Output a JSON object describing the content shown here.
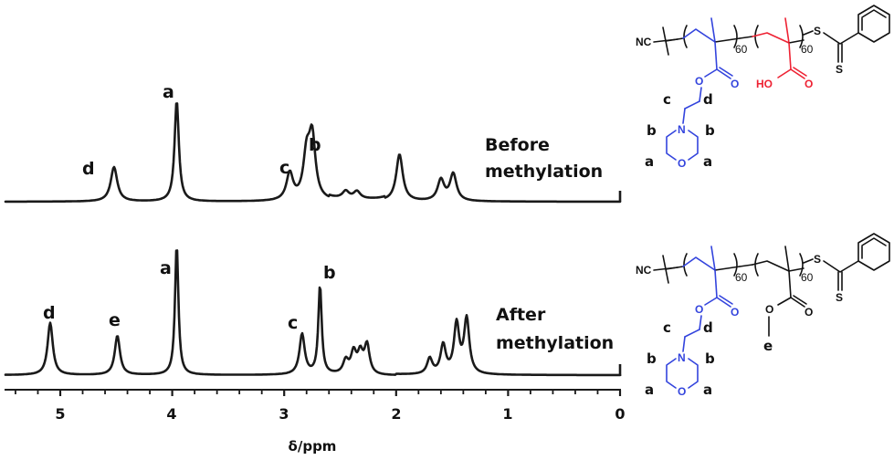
{
  "chart_data": {
    "type": "line",
    "title": "",
    "xlabel": "δ/ppm",
    "ylabel": "",
    "xlim": [
      5.47,
      0
    ],
    "x_reversed": true,
    "x_ticks": [
      5,
      4,
      3,
      2,
      1,
      0
    ],
    "x_tick_labels": [
      "5",
      "4",
      "3",
      "2",
      "1",
      "0"
    ],
    "minor_tick_step": 0.2,
    "grid": false,
    "legend": null,
    "series": [
      {
        "name": "Before methylation",
        "peaks": [
          {
            "ppm": 4.52,
            "rel_height": 0.28,
            "label": "d"
          },
          {
            "ppm": 3.96,
            "rel_height": 0.82,
            "label": "a"
          },
          {
            "ppm": 2.95,
            "rel_height": 0.22,
            "label": "c"
          },
          {
            "ppm": 2.8,
            "rel_height": 0.34,
            "label": ""
          },
          {
            "ppm": 2.75,
            "rel_height": 0.5,
            "label": "b"
          },
          {
            "ppm": 2.45,
            "rel_height": 0.06,
            "label": ""
          },
          {
            "ppm": 2.35,
            "rel_height": 0.06,
            "label": ""
          },
          {
            "ppm": 1.97,
            "rel_height": 0.38,
            "label": ""
          },
          {
            "ppm": 1.6,
            "rel_height": 0.17,
            "label": ""
          },
          {
            "ppm": 1.49,
            "rel_height": 0.22,
            "label": ""
          }
        ]
      },
      {
        "name": "After methylation",
        "peaks": [
          {
            "ppm": 5.09,
            "rel_height": 0.4,
            "label": "d"
          },
          {
            "ppm": 4.49,
            "rel_height": 0.3,
            "label": "e"
          },
          {
            "ppm": 3.96,
            "rel_height": 1.0,
            "label": "a"
          },
          {
            "ppm": 2.84,
            "rel_height": 0.31,
            "label": "c"
          },
          {
            "ppm": 2.68,
            "rel_height": 0.68,
            "label": "b"
          },
          {
            "ppm": 2.45,
            "rel_height": 0.1,
            "label": ""
          },
          {
            "ppm": 2.38,
            "rel_height": 0.16,
            "label": ""
          },
          {
            "ppm": 2.32,
            "rel_height": 0.15,
            "label": ""
          },
          {
            "ppm": 2.26,
            "rel_height": 0.22,
            "label": ""
          },
          {
            "ppm": 1.7,
            "rel_height": 0.12,
            "label": ""
          },
          {
            "ppm": 1.58,
            "rel_height": 0.22,
            "label": ""
          },
          {
            "ppm": 1.46,
            "rel_height": 0.38,
            "label": ""
          },
          {
            "ppm": 1.37,
            "rel_height": 0.42,
            "label": ""
          }
        ]
      }
    ]
  },
  "spectra": {
    "before": {
      "label_line1": "Before",
      "label_line2": "methylation",
      "peak_labels": {
        "d": "d",
        "a": "a",
        "c": "c",
        "b": "b"
      }
    },
    "after": {
      "label_line1": "After",
      "label_line2": "methylation",
      "peak_labels": {
        "d": "d",
        "e": "e",
        "a": "a",
        "c": "c",
        "b": "b"
      }
    }
  },
  "axis": {
    "title": "δ/ppm",
    "ticks": [
      "5",
      "4",
      "3",
      "2",
      "1",
      "0"
    ]
  },
  "structures": {
    "top": {
      "end_group": "NC",
      "repeat_1": "60",
      "repeat_2": "60",
      "sulfur_1": "S",
      "sulfur_2": "S",
      "ester_o": "O",
      "carbonyl_o_1": "O",
      "acid_oh": "HO",
      "carbonyl_o_2": "O",
      "amine_n": "N",
      "ring_o": "O",
      "labels": {
        "c": "c",
        "d": "d",
        "b1": "b",
        "b2": "b",
        "a1": "a",
        "a2": "a"
      },
      "colors": {
        "pdmaema_block": "#3344dd",
        "acid_block": "#ee2233",
        "backbone": "#111111"
      }
    },
    "bottom": {
      "end_group": "NC",
      "repeat_1": "60",
      "repeat_2": "60",
      "sulfur_1": "S",
      "sulfur_2": "S",
      "ester_o": "O",
      "carbonyl_o_1": "O",
      "methyl_ester_o": "O",
      "carbonyl_o_2": "O",
      "amine_n": "N",
      "ring_o": "O",
      "labels": {
        "c": "c",
        "d": "d",
        "b1": "b",
        "b2": "b",
        "a1": "a",
        "a2": "a",
        "e": "e"
      },
      "colors": {
        "pdmaema_block": "#3344dd",
        "backbone": "#111111"
      }
    }
  }
}
